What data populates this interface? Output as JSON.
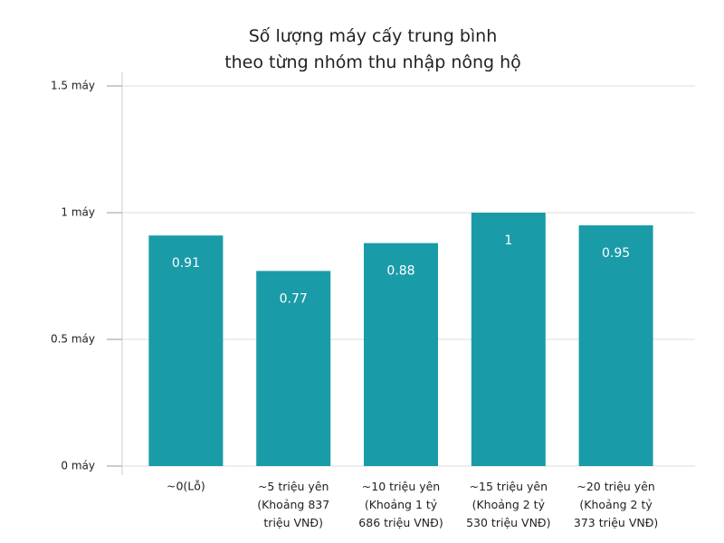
{
  "chart_data": {
    "type": "bar",
    "title": "Số lượng máy cấy trung bình\ntheo từng nhóm thu nhập nông hộ",
    "categories": [
      "~0(Lỗ)",
      "~5 triệu yên\n(Khoảng 837\ntriệu VNĐ)",
      "~10 triệu yên\n(Khoảng 1 tỷ\n686 triệu VNĐ)",
      "~15 triệu yên\n(Khoảng 2 tỷ\n530 triệu VNĐ)",
      "~20 triệu yên\n(Khoảng 2 tỷ\n373 triệu VNĐ)"
    ],
    "values": [
      0.91,
      0.77,
      0.88,
      1,
      0.95
    ],
    "color": "#1a9ba8",
    "ylim": [
      0,
      1.5
    ],
    "yticks": [
      {
        "value": 0,
        "label": "0 máy"
      },
      {
        "value": 0.5,
        "label": "0.5 máy"
      },
      {
        "value": 1,
        "label": "1 máy"
      },
      {
        "value": 1.5,
        "label": "1.5 máy"
      }
    ],
    "grid": true
  }
}
